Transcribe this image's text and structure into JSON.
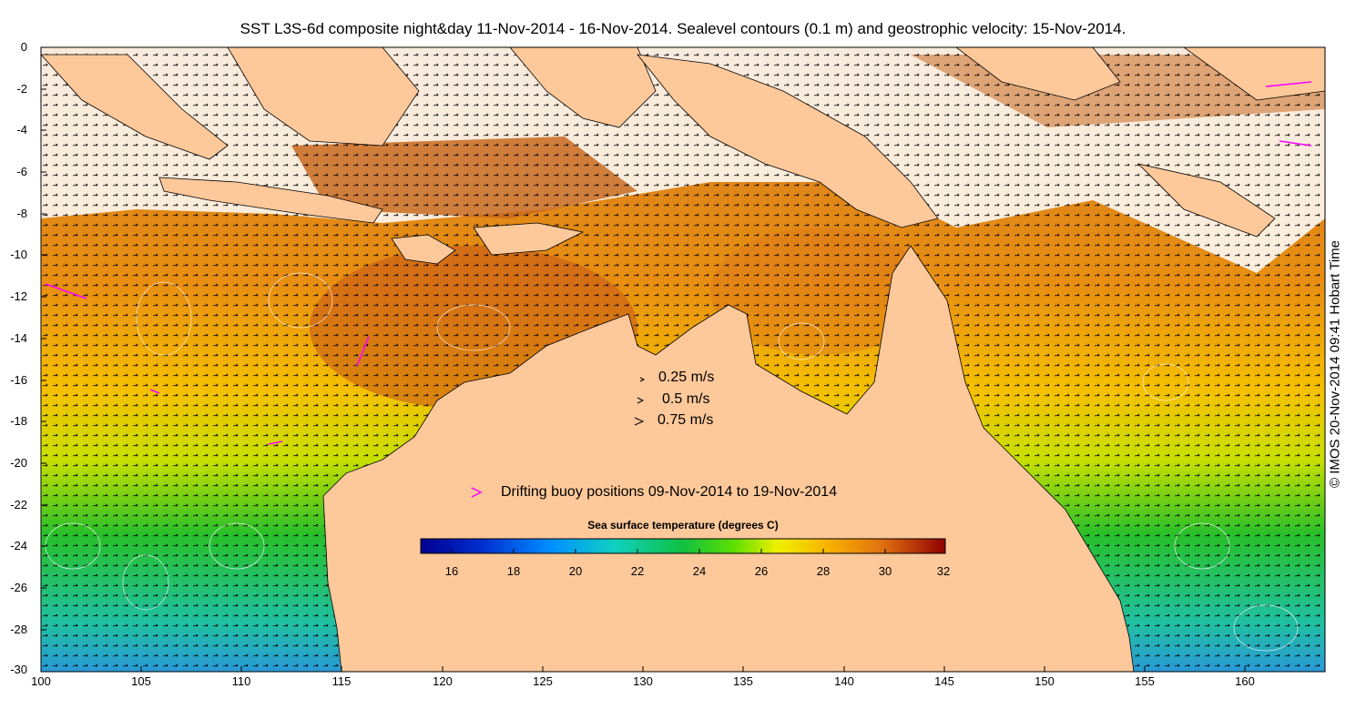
{
  "title": "SST L3S-6d composite night&day 11-Nov-2014 - 16-Nov-2014. Sealevel contours (0.1 m) and geostrophic velocity: 15-Nov-2014.",
  "credit": "© IMOS 20-Nov-2014 09:41 Hobart Time",
  "y_axis_ticks": [
    "0",
    "-2",
    "-4",
    "-6",
    "-8",
    "-10",
    "-12",
    "-14",
    "-16",
    "-18",
    "-20",
    "-22",
    "-24",
    "-26",
    "-28",
    "-30"
  ],
  "x_axis_ticks": [
    "100",
    "105",
    "110",
    "115",
    "120",
    "125",
    "130",
    "135",
    "140",
    "145",
    "150",
    "155",
    "160"
  ],
  "velocity_legend": [
    "0.25 m/s",
    "0.5 m/s",
    "0.75 m/s"
  ],
  "buoy_legend": "Drifting buoy positions 09-Nov-2014 to 19-Nov-2014",
  "colorbar": {
    "title": "Sea surface temperature (degrees C)",
    "ticks": [
      "16",
      "18",
      "20",
      "22",
      "24",
      "26",
      "28",
      "30",
      "32"
    ],
    "range": [
      15,
      32
    ]
  },
  "colors": {
    "land": "#fdc89a",
    "cloud": "#ffffff",
    "buoy": "#ff00ff",
    "sst_warm": "#c8641e",
    "sst_mid": "#f0b400",
    "sst_cool": "#20c040"
  }
}
